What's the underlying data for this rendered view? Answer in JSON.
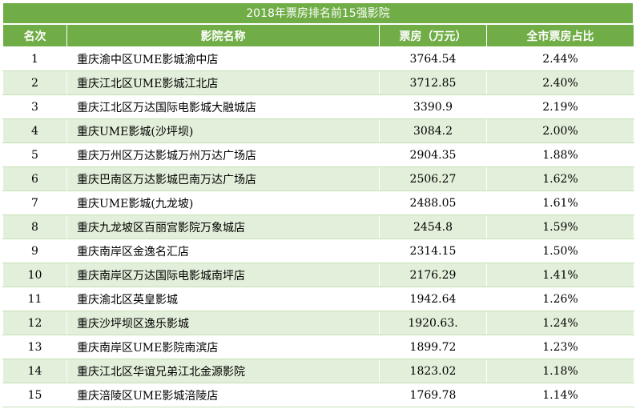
{
  "title": "2018年票房排名前15强影院",
  "headers": {
    "rank": "名次",
    "name": "影院名称",
    "box": "票房（万元）",
    "share": "全市票房占比"
  },
  "rows": [
    {
      "rank": "1",
      "name": "重庆渝中区UME影城渝中店",
      "box": "3764.54",
      "share": "2.44%"
    },
    {
      "rank": "2",
      "name": "重庆江北区UME影城江北店",
      "box": "3712.85",
      "share": "2.40%"
    },
    {
      "rank": "3",
      "name": "重庆江北区万达国际电影城大融城店",
      "box": "3390.9",
      "share": "2.19%"
    },
    {
      "rank": "4",
      "name": "重庆UME影城(沙坪坝)",
      "box": "3084.2",
      "share": "2.00%"
    },
    {
      "rank": "5",
      "name": "重庆万州区万达影城万州万达广场店",
      "box": "2904.35",
      "share": "1.88%"
    },
    {
      "rank": "6",
      "name": "重庆巴南区万达影城巴南万达广场店",
      "box": "2506.27",
      "share": "1.62%"
    },
    {
      "rank": "7",
      "name": "重庆UME影城(九龙坡)",
      "box": "2488.05",
      "share": "1.61%"
    },
    {
      "rank": "8",
      "name": "重庆九龙坡区百丽宫影院万象城店",
      "box": "2454.8",
      "share": "1.59%"
    },
    {
      "rank": "9",
      "name": "重庆南岸区金逸名汇店",
      "box": "2314.15",
      "share": "1.50%"
    },
    {
      "rank": "10",
      "name": "重庆南岸区万达国际电影城南坪店",
      "box": "2176.29",
      "share": "1.41%"
    },
    {
      "rank": "11",
      "name": "重庆渝北区英皇影城",
      "box": "1942.64",
      "share": "1.26%"
    },
    {
      "rank": "12",
      "name": "重庆沙坪坝区逸乐影城",
      "box": "1920.63.",
      "share": "1.24%"
    },
    {
      "rank": "13",
      "name": "重庆南岸区UME影院南滨店",
      "box": "1899.72",
      "share": "1.23%"
    },
    {
      "rank": "14",
      "name": "重庆江北区华谊兄弟江北金源影院",
      "box": "1823.02",
      "share": "1.18%"
    },
    {
      "rank": "15",
      "name": "重庆涪陵区UME影城涪陵店",
      "box": "1769.78",
      "share": "1.14%"
    }
  ],
  "colors": {
    "header_bg": "#70ad47",
    "header_text": "#ffffff",
    "stripe_bg": "#e2efda",
    "row_bg": "#ffffff"
  }
}
